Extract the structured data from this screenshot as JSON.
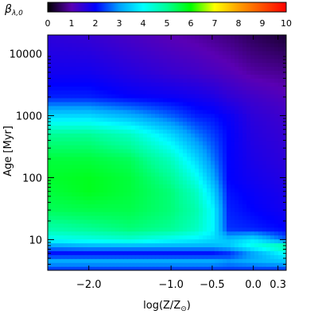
{
  "chart_data": {
    "type": "heatmap",
    "colorbar": {
      "label_base": "β",
      "label_sub": "λ,0",
      "ticks": [
        "0",
        "1",
        "2",
        "3",
        "4",
        "5",
        "6",
        "7",
        "8",
        "9",
        "10"
      ],
      "range": [
        0,
        10
      ]
    },
    "x_axis": {
      "label_prefix": "log(Z/Z",
      "label_suffix": ")",
      "range": [
        -2.5,
        0.4
      ],
      "ticks": [
        {
          "value": -2.0,
          "label": "−2.0"
        },
        {
          "value": -1.0,
          "label": "−1.0"
        },
        {
          "value": -0.5,
          "label": "−0.5"
        },
        {
          "value": 0.0,
          "label": "0.0"
        },
        {
          "value": 0.3,
          "label": "0.3"
        }
      ]
    },
    "y_axis": {
      "label": "Age",
      "unit": "[Myr]",
      "scale": "log",
      "range": [
        3.2,
        20000
      ],
      "ticks": [
        {
          "value": 10,
          "label": "10"
        },
        {
          "value": 100,
          "label": "100"
        },
        {
          "value": 1000,
          "label": "1000"
        },
        {
          "value": 10000,
          "label": "10000"
        }
      ]
    },
    "colormap_stops": [
      {
        "v": 0,
        "color": "#000000"
      },
      {
        "v": 1,
        "color": "#5a00b4"
      },
      {
        "v": 2,
        "color": "#0000ff"
      },
      {
        "v": 3,
        "color": "#00a0ff"
      },
      {
        "v": 4,
        "color": "#00ffff"
      },
      {
        "v": 5,
        "color": "#00ff96"
      },
      {
        "v": 6,
        "color": "#00ff00"
      },
      {
        "v": 7,
        "color": "#ffff00"
      },
      {
        "v": 8,
        "color": "#ffa000"
      },
      {
        "v": 9,
        "color": "#ff5000"
      },
      {
        "v": 10,
        "color": "#ff0000"
      }
    ],
    "field_samples": {
      "x": [
        -2.5,
        -2.0,
        -1.5,
        -1.0,
        -0.7,
        -0.5,
        -0.3,
        0.0,
        0.4
      ],
      "y": [
        3.2,
        4.5,
        6,
        8,
        10,
        15,
        30,
        60,
        100,
        200,
        500,
        1000,
        2000,
        5000,
        20000
      ],
      "values": [
        [
          2.2,
          2.2,
          2.2,
          2.2,
          2.2,
          2.2,
          2.2,
          2.2,
          2.2
        ],
        [
          3.2,
          3.2,
          3.2,
          3.2,
          3.2,
          3.2,
          3.0,
          3.2,
          3.4
        ],
        [
          2.0,
          2.0,
          2.0,
          2.0,
          2.0,
          2.0,
          2.2,
          3.0,
          4.0
        ],
        [
          3.0,
          3.2,
          3.2,
          3.2,
          3.2,
          3.2,
          3.4,
          4.2,
          5.0
        ],
        [
          4.0,
          4.2,
          4.4,
          4.0,
          3.8,
          3.6,
          3.4,
          3.8,
          2.6
        ],
        [
          4.8,
          5.0,
          5.2,
          5.0,
          4.6,
          4.0,
          2.3,
          2.2,
          2.0
        ],
        [
          5.4,
          5.5,
          5.5,
          5.2,
          4.8,
          4.0,
          2.2,
          2.0,
          1.8
        ],
        [
          5.6,
          5.8,
          5.6,
          5.2,
          4.6,
          3.6,
          2.1,
          1.9,
          1.7
        ],
        [
          5.7,
          5.8,
          5.6,
          5.0,
          4.2,
          3.2,
          2.0,
          1.8,
          1.6
        ],
        [
          5.6,
          5.6,
          5.4,
          4.6,
          3.6,
          2.8,
          2.0,
          1.7,
          1.5
        ],
        [
          5.0,
          5.0,
          4.6,
          3.6,
          2.8,
          2.4,
          2.0,
          1.6,
          1.4
        ],
        [
          3.6,
          3.6,
          3.2,
          2.6,
          2.2,
          2.1,
          1.9,
          1.5,
          1.3
        ],
        [
          2.2,
          2.2,
          2.0,
          1.9,
          1.8,
          1.7,
          1.5,
          1.3,
          1.1
        ],
        [
          1.8,
          1.8,
          1.6,
          1.4,
          1.3,
          1.2,
          1.1,
          0.9,
          0.8
        ],
        [
          1.5,
          1.4,
          1.2,
          1.0,
          0.9,
          0.8,
          0.7,
          0.5,
          0.3
        ]
      ]
    },
    "grid": false,
    "legend": "colorbar-top"
  }
}
